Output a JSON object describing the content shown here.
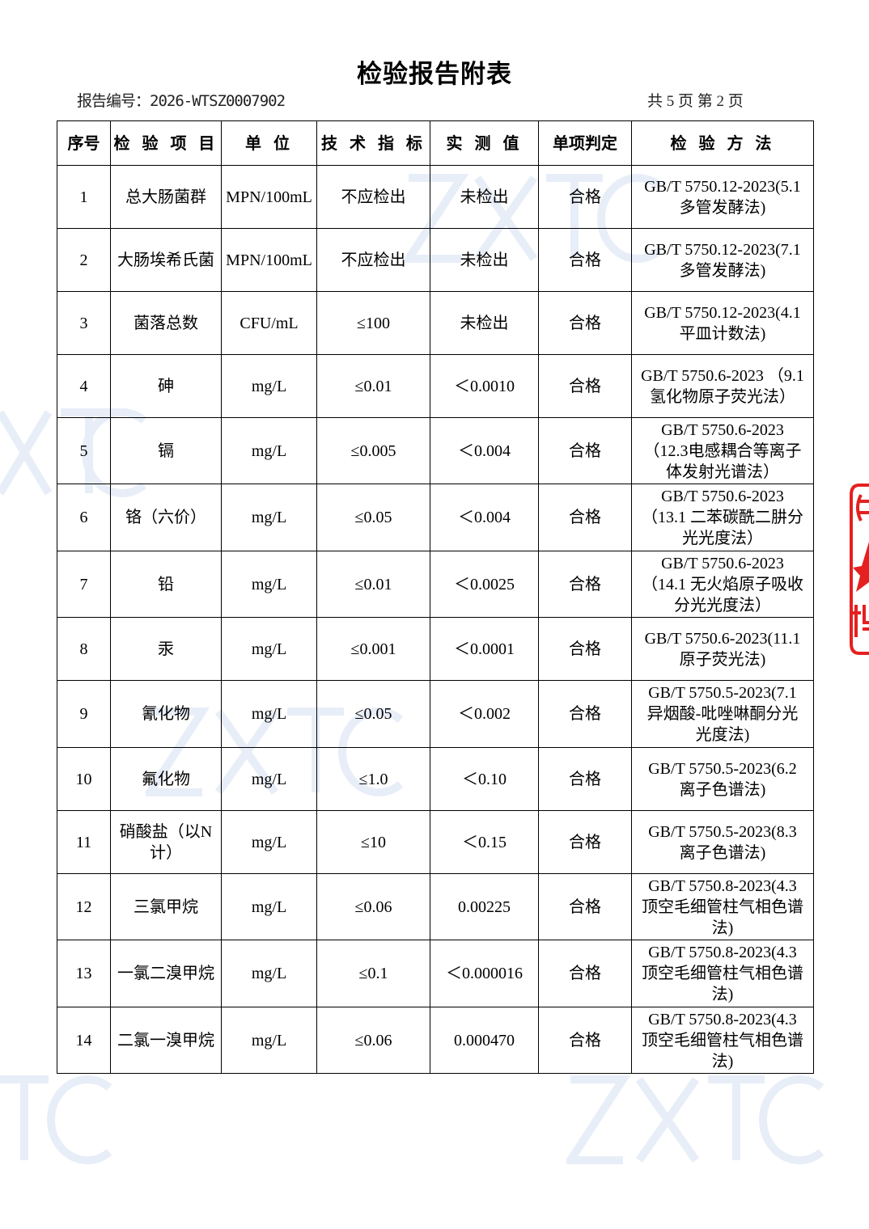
{
  "title": "检验报告附表",
  "report_no": "报告编号：2026-WTSZ0007902",
  "pages": "共 5 页  第 2 页",
  "watermark": "ZXTC",
  "stamp_chars": [
    "(",
    "传"
  ],
  "columns": [
    "序号",
    "检 验 项 目",
    "单 位",
    "技 术 指 标",
    "实 测 值",
    "单项判定",
    "检 验 方 法"
  ],
  "rows": [
    {
      "no": "1",
      "item": "总大肠菌群",
      "unit": "MPN/100mL",
      "limit": "不应检出",
      "value": "未检出",
      "result": "合格",
      "method": "GB/T 5750.12-2023(5.1\n多管发酵法)"
    },
    {
      "no": "2",
      "item": "大肠埃希氏菌",
      "unit": "MPN/100mL",
      "limit": "不应检出",
      "value": "未检出",
      "result": "合格",
      "method": "GB/T 5750.12-2023(7.1\n多管发酵法)"
    },
    {
      "no": "3",
      "item": "菌落总数",
      "unit": "CFU/mL",
      "limit": "≤100",
      "value": "未检出",
      "result": "合格",
      "method": "GB/T 5750.12-2023(4.1\n平皿计数法)"
    },
    {
      "no": "4",
      "item": "砷",
      "unit": "mg/L",
      "limit": "≤0.01",
      "value": "＜0.0010",
      "result": "合格",
      "method": "GB/T 5750.6-2023 （9.1\n氢化物原子荧光法）"
    },
    {
      "no": "5",
      "item": "镉",
      "unit": "mg/L",
      "limit": "≤0.005",
      "value": "＜0.004",
      "result": "合格",
      "method": "GB/T 5750.6-2023\n（12.3电感耦合等离子\n体发射光谱法）"
    },
    {
      "no": "6",
      "item": "铬（六价）",
      "unit": "mg/L",
      "limit": "≤0.05",
      "value": "＜0.004",
      "result": "合格",
      "method": "GB/T 5750.6-2023\n（13.1 二苯碳酰二肼分\n光光度法）"
    },
    {
      "no": "7",
      "item": "铅",
      "unit": "mg/L",
      "limit": "≤0.01",
      "value": "＜0.0025",
      "result": "合格",
      "method": "GB/T 5750.6-2023\n（14.1 无火焰原子吸收\n分光光度法）"
    },
    {
      "no": "8",
      "item": "汞",
      "unit": "mg/L",
      "limit": "≤0.001",
      "value": "＜0.0001",
      "result": "合格",
      "method": "GB/T 5750.6-2023(11.1\n原子荧光法)"
    },
    {
      "no": "9",
      "item": "氰化物",
      "unit": "mg/L",
      "limit": "≤0.05",
      "value": "＜0.002",
      "result": "合格",
      "method": "GB/T 5750.5-2023(7.1\n异烟酸-吡唑啉酮分光\n光度法)"
    },
    {
      "no": "10",
      "item": "氟化物",
      "unit": "mg/L",
      "limit": "≤1.0",
      "value": "＜0.10",
      "result": "合格",
      "method": "GB/T 5750.5-2023(6.2\n离子色谱法)"
    },
    {
      "no": "11",
      "item": "硝酸盐（以N\n计）",
      "unit": "mg/L",
      "limit": "≤10",
      "value": "＜0.15",
      "result": "合格",
      "method": "GB/T 5750.5-2023(8.3\n离子色谱法)"
    },
    {
      "no": "12",
      "item": "三氯甲烷",
      "unit": "mg/L",
      "limit": "≤0.06",
      "value": "0.00225",
      "result": "合格",
      "method": "GB/T 5750.8-2023(4.3\n顶空毛细管柱气相色谱\n法)"
    },
    {
      "no": "13",
      "item": "一氯二溴甲烷",
      "unit": "mg/L",
      "limit": "≤0.1",
      "value": "＜0.000016",
      "result": "合格",
      "method": "GB/T 5750.8-2023(4.3\n顶空毛细管柱气相色谱\n法)"
    },
    {
      "no": "14",
      "item": "二氯一溴甲烷",
      "unit": "mg/L",
      "limit": "≤0.06",
      "value": "0.000470",
      "result": "合格",
      "method": "GB/T 5750.8-2023(4.3\n顶空毛细管柱气相色谱\n法)"
    }
  ]
}
